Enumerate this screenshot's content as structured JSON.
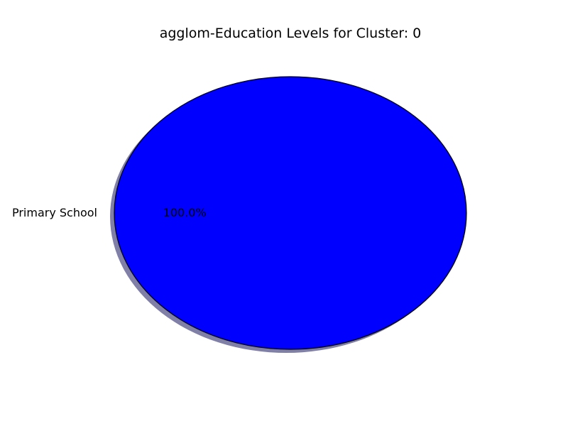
{
  "chart_data": {
    "type": "pie",
    "title": "agglom-Education Levels for Cluster: 0",
    "slices": [
      {
        "label": "Primary School",
        "value": 100.0,
        "pct_label": "100.0%",
        "color": "#0000ff"
      }
    ],
    "shadow": true,
    "shadow_color": "#7f7fa8",
    "edge_color": "#000000"
  }
}
